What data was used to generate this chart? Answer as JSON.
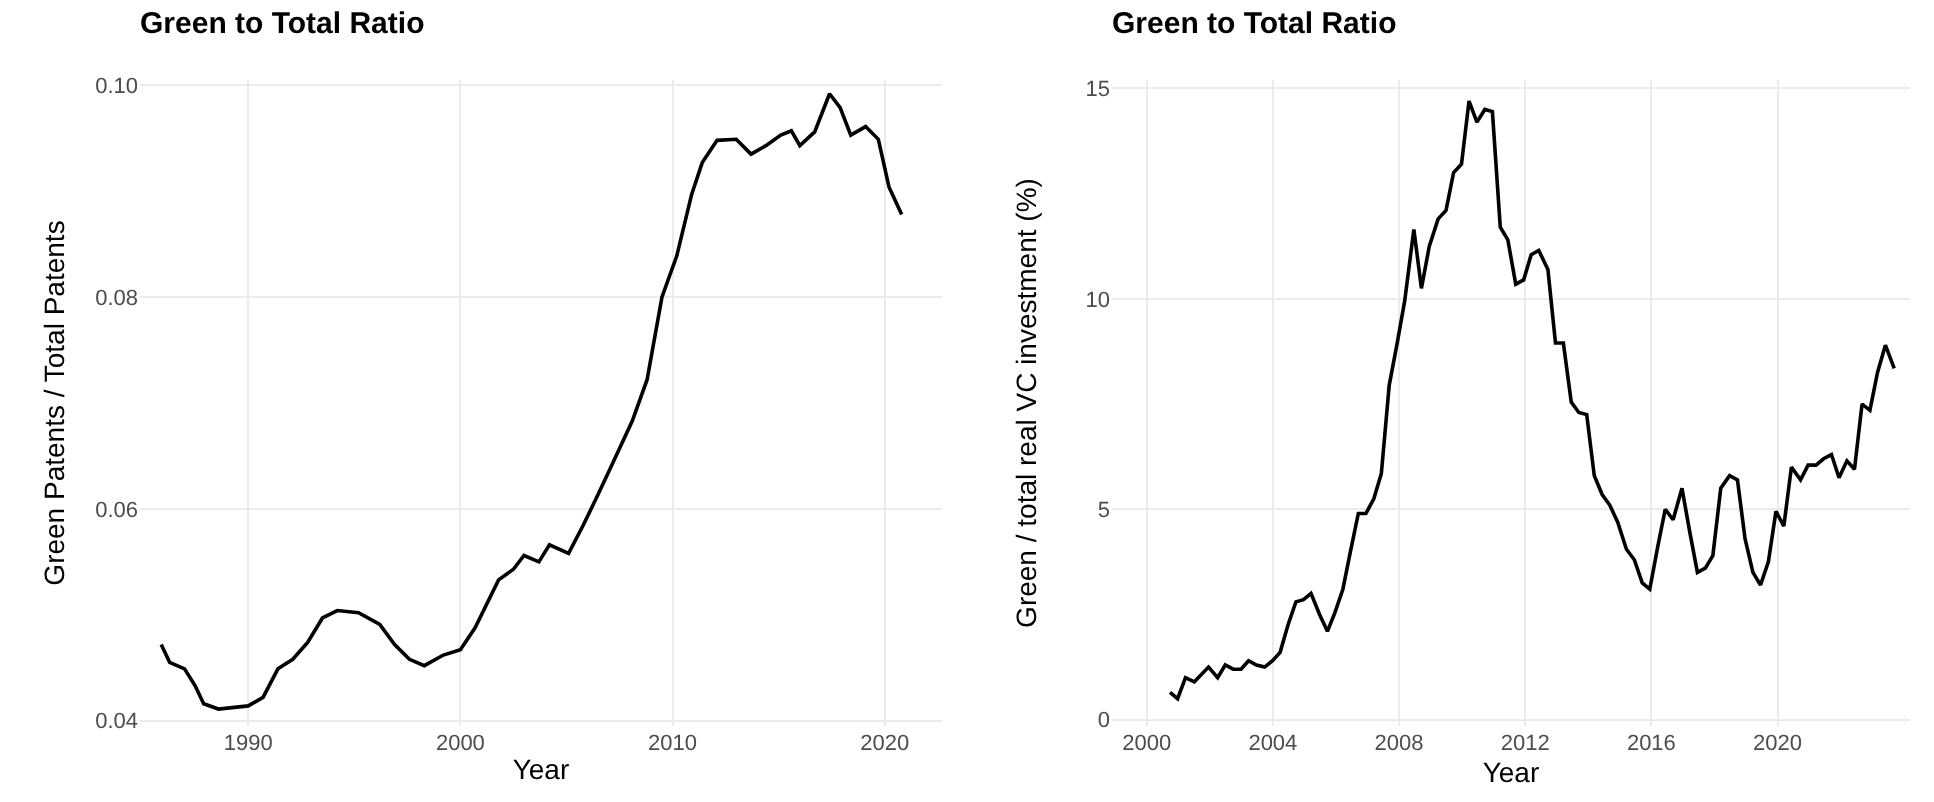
{
  "chart_data": [
    {
      "type": "line",
      "title": "Green to Total Ratio",
      "xlabel": "Year",
      "ylabel": "Green Patents / Total Patents",
      "x": [
        1985.9,
        1986.3,
        1987.0,
        1987.5,
        1987.9,
        1988.6,
        1990.0,
        1990.7,
        1991.4,
        1992.1,
        1992.8,
        1993.5,
        1994.2,
        1995.2,
        1996.2,
        1996.9,
        1997.6,
        1998.3,
        1999.2,
        2000.0,
        2000.7,
        2001.8,
        2002.5,
        2003.0,
        2003.7,
        2004.2,
        2005.1,
        2005.8,
        2006.5,
        2007.2,
        2008.1,
        2008.8,
        2009.5,
        2010.2,
        2010.9,
        2011.4,
        2012.1,
        2013.0,
        2013.7,
        2014.4,
        2015.1,
        2015.6,
        2016.0,
        2016.7,
        2017.4,
        2017.9,
        2018.4,
        2019.1,
        2019.7,
        2020.2,
        2020.8
      ],
      "series": [
        {
          "color": "#000000",
          "values": [
            0.0472,
            0.0455,
            0.0449,
            0.0433,
            0.0416,
            0.0411,
            0.0414,
            0.0422,
            0.0449,
            0.0458,
            0.0474,
            0.0497,
            0.0504,
            0.0502,
            0.0491,
            0.0472,
            0.0458,
            0.0452,
            0.0462,
            0.0467,
            0.0488,
            0.0533,
            0.0543,
            0.0556,
            0.055,
            0.0566,
            0.0558,
            0.0585,
            0.0614,
            0.0644,
            0.0683,
            0.0722,
            0.08,
            0.0839,
            0.0897,
            0.0927,
            0.0948,
            0.0949,
            0.0935,
            0.0943,
            0.0953,
            0.0957,
            0.0943,
            0.0956,
            0.0992,
            0.0979,
            0.0953,
            0.0961,
            0.0949,
            0.0904,
            0.0878
          ]
        }
      ],
      "xlim": [
        1984.9,
        2022.7
      ],
      "xticks": [
        1990,
        2000,
        2010,
        2020
      ],
      "ylim": [
        0.0395,
        0.1005
      ],
      "yticks": [
        {
          "value": 0.04,
          "label": "0.04"
        },
        {
          "value": 0.06,
          "label": "0.06"
        },
        {
          "value": 0.08,
          "label": "0.08"
        },
        {
          "value": 0.1,
          "label": "0.10"
        }
      ],
      "grid": true
    },
    {
      "type": "line",
      "title": "Green to Total Ratio",
      "xlabel": "Year",
      "ylabel": "Green / total real VC investment (%)",
      "x": [
        2000.74,
        2000.98,
        2001.23,
        2001.51,
        2001.96,
        2002.25,
        2002.49,
        2002.74,
        2002.99,
        2003.23,
        2003.48,
        2003.74,
        2003.99,
        2004.23,
        2004.48,
        2004.73,
        2004.97,
        2005.21,
        2005.48,
        2005.73,
        2005.97,
        2006.22,
        2006.46,
        2006.71,
        2006.95,
        2007.2,
        2007.44,
        2007.69,
        2007.93,
        2008.18,
        2008.47,
        2008.71,
        2008.96,
        2009.24,
        2009.49,
        2009.73,
        2009.98,
        2010.22,
        2010.47,
        2010.72,
        2010.96,
        2011.21,
        2011.45,
        2011.7,
        2011.95,
        2012.19,
        2012.43,
        2012.72,
        2012.96,
        2013.21,
        2013.46,
        2013.7,
        2013.95,
        2014.19,
        2014.44,
        2014.68,
        2014.93,
        2015.21,
        2015.46,
        2015.71,
        2015.95,
        2016.2,
        2016.44,
        2016.69,
        2016.97,
        2017.22,
        2017.46,
        2017.71,
        2017.95,
        2018.2,
        2018.48,
        2018.73,
        2018.97,
        2019.22,
        2019.46,
        2019.71,
        2019.95,
        2020.2,
        2020.44,
        2020.73,
        2020.97,
        2021.22,
        2021.46,
        2021.71,
        2021.95,
        2022.2,
        2022.44,
        2022.68,
        2022.93,
        2023.17,
        2023.42,
        2023.7
      ],
      "series": [
        {
          "color": "#000000",
          "values": [
            0.65,
            0.5,
            1.0,
            0.9,
            1.25,
            1.0,
            1.3,
            1.2,
            1.2,
            1.4,
            1.3,
            1.25,
            1.4,
            1.6,
            2.25,
            2.8,
            2.85,
            3.0,
            2.5,
            2.1,
            2.55,
            3.1,
            4.0,
            4.9,
            4.9,
            5.25,
            5.85,
            7.95,
            8.9,
            9.95,
            11.65,
            10.25,
            11.25,
            11.9,
            12.1,
            13.0,
            13.2,
            14.7,
            14.2,
            14.5,
            14.45,
            11.7,
            11.4,
            10.35,
            10.45,
            11.05,
            11.15,
            10.7,
            8.95,
            8.95,
            7.55,
            7.3,
            7.25,
            5.8,
            5.35,
            5.1,
            4.7,
            4.05,
            3.8,
            3.25,
            3.1,
            4.1,
            5.0,
            4.75,
            5.5,
            4.45,
            3.5,
            3.6,
            3.9,
            5.5,
            5.8,
            5.7,
            4.3,
            3.5,
            3.2,
            3.75,
            4.95,
            4.6,
            6.0,
            5.7,
            6.05,
            6.05,
            6.2,
            6.3,
            5.75,
            6.15,
            5.95,
            7.5,
            7.35,
            8.25,
            8.9,
            8.35
          ]
        }
      ],
      "xlim": [
        1998.9,
        2024.2
      ],
      "xticks": [
        2000,
        2004,
        2008,
        2012,
        2016,
        2020
      ],
      "ylim": [
        -0.15,
        15.2
      ],
      "yticks": [
        0,
        5,
        10,
        15
      ],
      "grid": true
    }
  ]
}
